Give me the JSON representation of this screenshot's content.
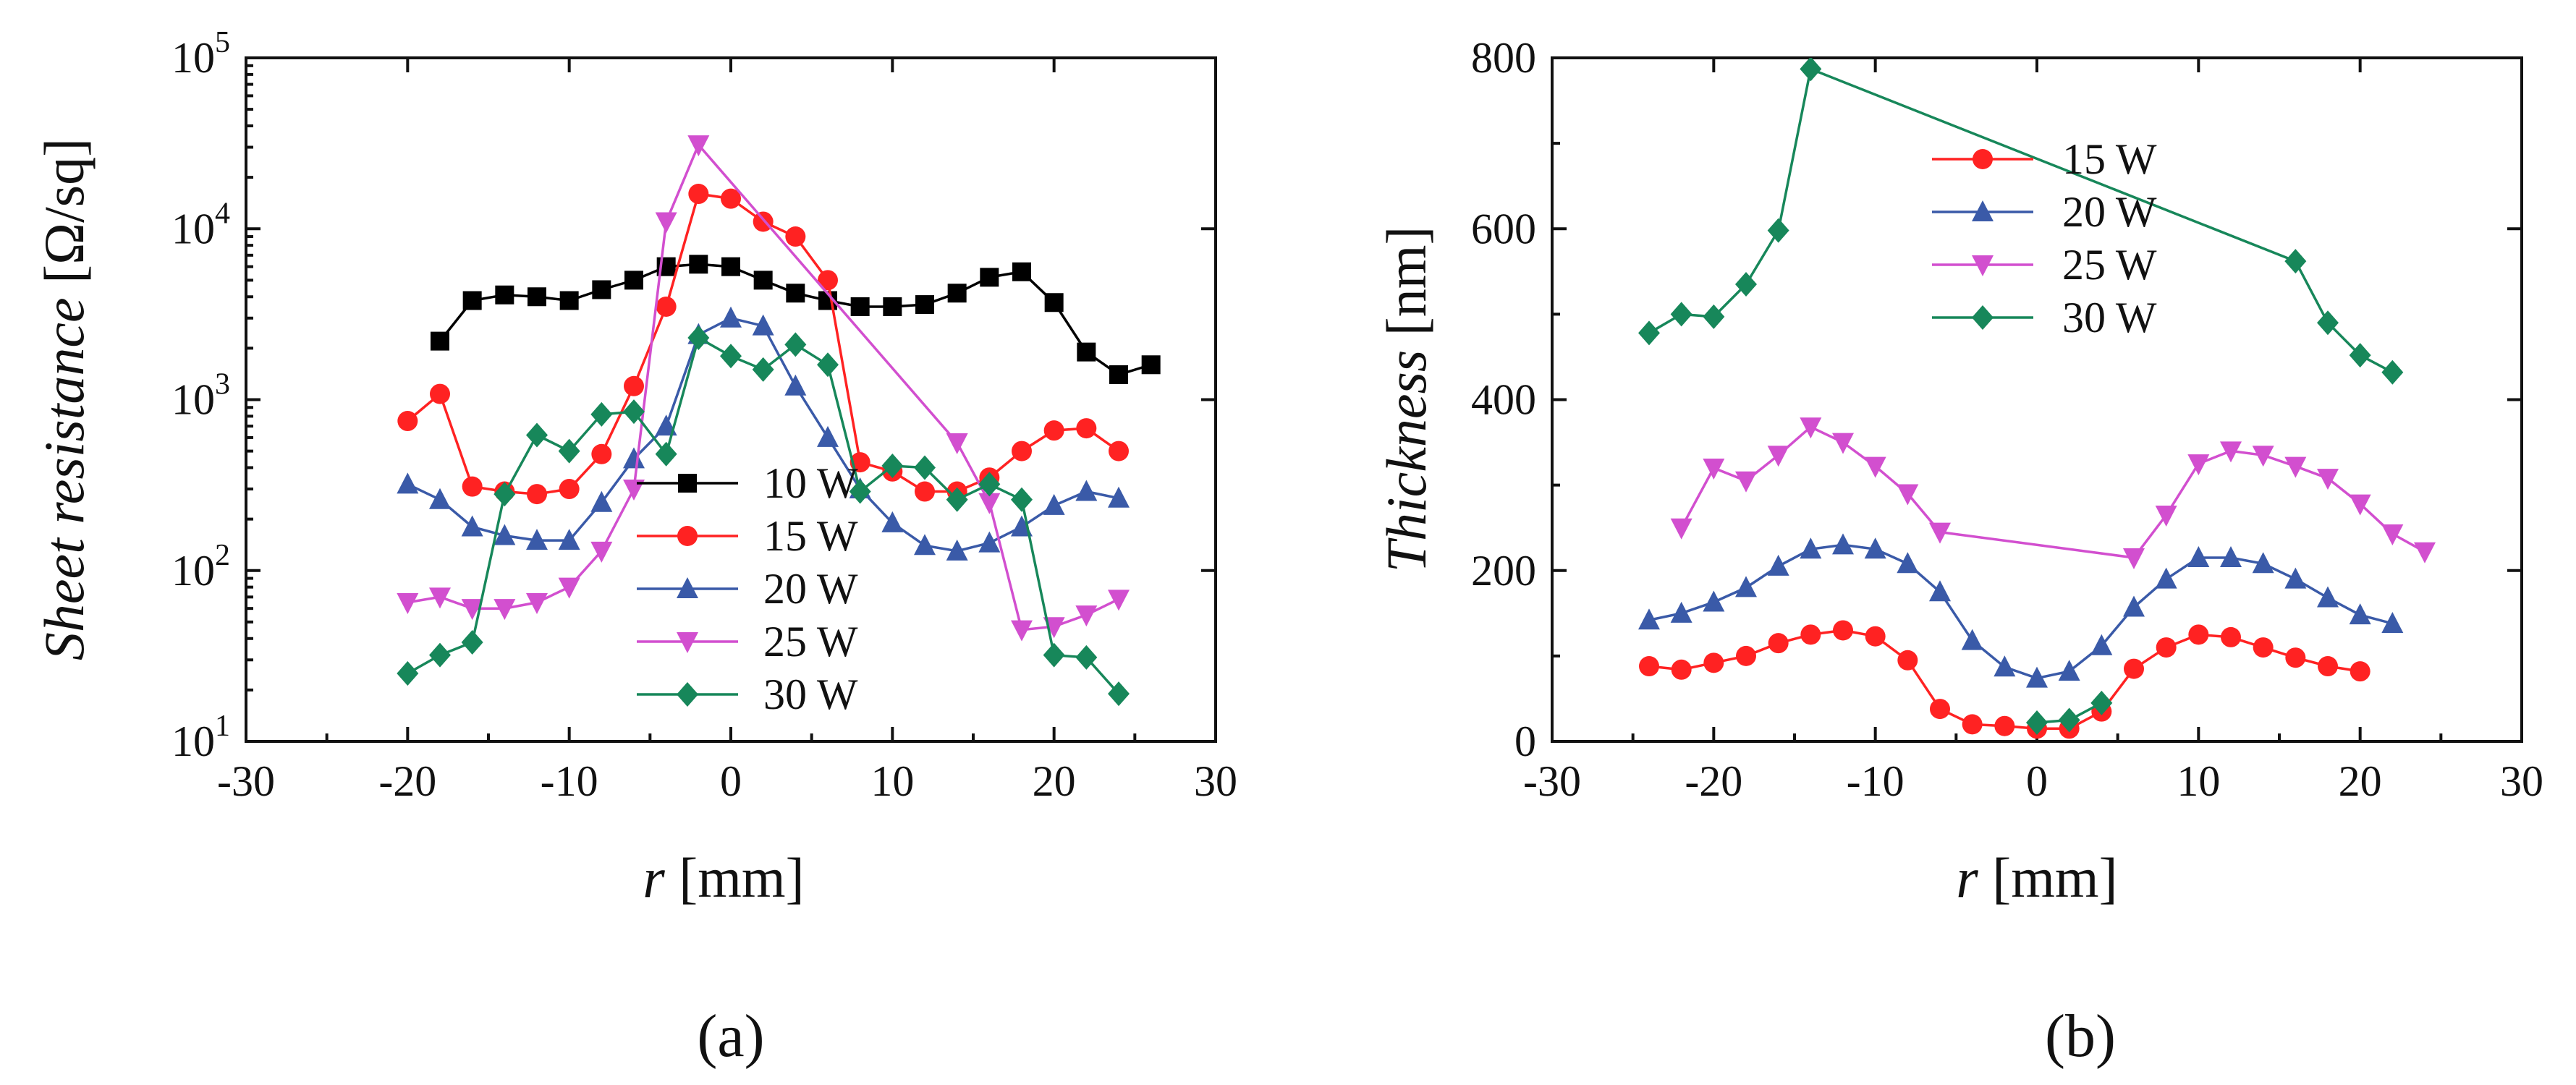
{
  "chart_data": [
    {
      "type": "line",
      "panel_label": "(a)",
      "ylabel": {
        "italic": "Sheet resistance",
        "unit": "[Ω/sq]"
      },
      "xlabel": {
        "italic": "r",
        "unit": "[mm]"
      },
      "yscale": "log",
      "xlim": [
        -30,
        30
      ],
      "ylim": [
        10,
        100000
      ],
      "xticks": [
        -30,
        -20,
        -10,
        0,
        10,
        20,
        30
      ],
      "xtick_labels": [
        "-30",
        "-20",
        "-10",
        "0",
        "10",
        "20",
        "30"
      ],
      "yticks": [
        10,
        100,
        1000,
        10000,
        100000
      ],
      "ytick_labels": [
        {
          "base": "10",
          "exp": "1"
        },
        {
          "base": "10",
          "exp": "2"
        },
        {
          "base": "10",
          "exp": "3"
        },
        {
          "base": "10",
          "exp": "4"
        },
        {
          "base": "10",
          "exp": "5"
        }
      ],
      "legend_position": "lower-center",
      "series": [
        {
          "name": "10 W",
          "color": "#000000",
          "marker": "square",
          "x": [
            -18,
            -16,
            -14,
            -12,
            -10,
            -8,
            -6,
            -4,
            -2,
            0,
            2,
            4,
            6,
            8,
            10,
            12,
            14,
            16,
            18,
            20,
            22,
            24,
            26
          ],
          "y": [
            2200,
            3800,
            4100,
            4000,
            3800,
            4400,
            5000,
            6000,
            6200,
            6000,
            5000,
            4200,
            3800,
            3500,
            3500,
            3600,
            4200,
            5200,
            5600,
            3700,
            1900,
            1400,
            1600
          ]
        },
        {
          "name": "15 W",
          "color": "#ff2222",
          "marker": "circle",
          "x": [
            -20,
            -18,
            -16,
            -14,
            -12,
            -10,
            -8,
            -6,
            -4,
            -2,
            0,
            2,
            4,
            6,
            8,
            10,
            12,
            14,
            16,
            18,
            20,
            22,
            24
          ],
          "y": [
            750,
            1080,
            310,
            290,
            280,
            300,
            480,
            1200,
            3500,
            16000,
            15000,
            11000,
            9000,
            5000,
            430,
            380,
            290,
            290,
            350,
            500,
            660,
            680,
            500
          ]
        },
        {
          "name": "20 W",
          "color": "#3a5aa8",
          "marker": "triangle-up",
          "x": [
            -20,
            -18,
            -16,
            -14,
            -12,
            -10,
            -8,
            -6,
            -4,
            -2,
            0,
            2,
            4,
            6,
            8,
            10,
            12,
            14,
            16,
            18,
            20,
            22,
            24
          ],
          "y": [
            320,
            260,
            180,
            160,
            150,
            150,
            250,
            450,
            700,
            2400,
            3000,
            2700,
            1200,
            600,
            300,
            190,
            140,
            130,
            145,
            180,
            240,
            290,
            265
          ]
        },
        {
          "name": "25 W",
          "color": "#d24fcf",
          "marker": "triangle-down",
          "x": [
            -20,
            -18,
            -16,
            -14,
            -12,
            -10,
            -8,
            -6,
            -4,
            -2,
            14,
            16,
            18,
            20,
            22,
            24
          ],
          "y": [
            65,
            70,
            60,
            60,
            65,
            80,
            130,
            300,
            11000,
            31000,
            560,
            250,
            45,
            47,
            55,
            68
          ]
        },
        {
          "name": "30 W",
          "color": "#17875a",
          "marker": "diamond",
          "x": [
            -20,
            -18,
            -16,
            -14,
            -12,
            -10,
            -8,
            -6,
            -4,
            -2,
            0,
            2,
            4,
            6,
            8,
            10,
            12,
            14,
            16,
            18,
            20,
            22,
            24
          ],
          "y": [
            25,
            32,
            38,
            280,
            620,
            500,
            820,
            850,
            480,
            2300,
            1800,
            1500,
            2100,
            1600,
            290,
            410,
            400,
            260,
            320,
            260,
            32,
            31,
            19
          ]
        }
      ]
    },
    {
      "type": "line",
      "panel_label": "(b)",
      "ylabel": {
        "italic": "Thickness",
        "unit": "[nm]"
      },
      "xlabel": {
        "italic": "r",
        "unit": "[mm]"
      },
      "yscale": "linear",
      "xlim": [
        -30,
        30
      ],
      "ylim": [
        0,
        800
      ],
      "xticks": [
        -30,
        -20,
        -10,
        0,
        10,
        20,
        30
      ],
      "xtick_labels": [
        "-30",
        "-20",
        "-10",
        "0",
        "10",
        "20",
        "30"
      ],
      "yticks": [
        0,
        200,
        400,
        600,
        800
      ],
      "ytick_labels": [
        "0",
        "200",
        "400",
        "600",
        "800"
      ],
      "legend_position": "top-center",
      "series": [
        {
          "name": "15 W",
          "color": "#ff2222",
          "marker": "circle",
          "x": [
            -24,
            -22,
            -20,
            -18,
            -16,
            -14,
            -12,
            -10,
            -8,
            -6,
            -4,
            -2,
            0,
            2,
            4,
            6,
            8,
            10,
            12,
            14,
            16,
            18,
            20
          ],
          "y": [
            88,
            84,
            92,
            100,
            115,
            125,
            130,
            123,
            95,
            38,
            20,
            18,
            15,
            15,
            35,
            85,
            110,
            125,
            122,
            110,
            98,
            88,
            82
          ]
        },
        {
          "name": "20 W",
          "color": "#3a5aa8",
          "marker": "triangle-up",
          "x": [
            -24,
            -22,
            -20,
            -18,
            -16,
            -14,
            -12,
            -10,
            -8,
            -6,
            -4,
            -2,
            0,
            2,
            4,
            6,
            8,
            10,
            12,
            14,
            16,
            18,
            20,
            22
          ],
          "y": [
            142,
            150,
            163,
            180,
            205,
            225,
            230,
            225,
            208,
            175,
            118,
            87,
            74,
            82,
            112,
            157,
            190,
            215,
            215,
            208,
            190,
            168,
            148,
            138
          ]
        },
        {
          "name": "25 W",
          "color": "#d24fcf",
          "marker": "triangle-down",
          "x": [
            -22,
            -20,
            -18,
            -16,
            -14,
            -12,
            -10,
            -8,
            -6,
            6,
            8,
            10,
            12,
            14,
            16,
            18,
            20,
            22,
            24
          ],
          "y": [
            250,
            320,
            305,
            335,
            368,
            350,
            322,
            290,
            245,
            215,
            265,
            325,
            340,
            335,
            322,
            308,
            278,
            243,
            222
          ]
        },
        {
          "name": "30 W",
          "color": "#17875a",
          "marker": "diamond",
          "x": [
            -24,
            -22,
            -20,
            -18,
            -16,
            -14,
            16,
            18,
            20,
            22
          ],
          "y": [
            478,
            500,
            497,
            535,
            598,
            787,
            562,
            490,
            452,
            432
          ]
        },
        {
          "name": "30 W (center)",
          "color": "#17875a",
          "marker": "diamond",
          "in_legend": false,
          "x": [
            0,
            2,
            4
          ],
          "y": [
            22,
            25,
            45
          ]
        }
      ]
    }
  ]
}
